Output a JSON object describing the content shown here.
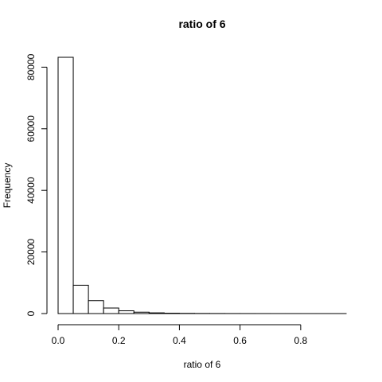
{
  "chart_data": {
    "type": "bar",
    "title": "ratio of 6",
    "xlabel": "ratio of 6",
    "ylabel": "Frequency",
    "bin_edges": [
      0.0,
      0.05,
      0.1,
      0.15,
      0.2,
      0.25,
      0.3,
      0.35,
      0.4,
      0.45,
      0.5,
      0.55,
      0.6,
      0.65,
      0.7,
      0.75,
      0.8,
      0.85,
      0.9,
      0.95
    ],
    "values": [
      83200,
      9200,
      4200,
      1800,
      900,
      450,
      230,
      120,
      70,
      40,
      25,
      15,
      10,
      6,
      4,
      3,
      2,
      2,
      1
    ],
    "xlim": [
      0.0,
      0.95
    ],
    "ylim": [
      0,
      83200
    ],
    "x_ticks": [
      0.0,
      0.2,
      0.4,
      0.6,
      0.8
    ],
    "x_tick_labels": [
      "0.0",
      "0.2",
      "0.4",
      "0.6",
      "0.8"
    ],
    "y_ticks": [
      0,
      20000,
      40000,
      60000,
      80000
    ],
    "y_tick_labels": [
      "0",
      "20000",
      "40000",
      "60000",
      "80000"
    ],
    "grid": false,
    "legend": "none"
  }
}
